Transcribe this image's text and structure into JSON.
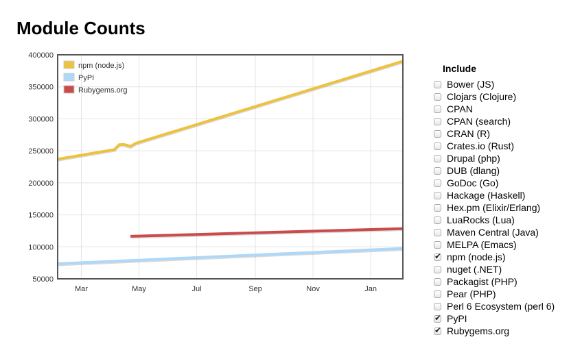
{
  "title": "Module Counts",
  "include": {
    "heading": "Include",
    "options": [
      {
        "label": "Bower (JS)",
        "checked": false
      },
      {
        "label": "Clojars (Clojure)",
        "checked": false
      },
      {
        "label": "CPAN",
        "checked": false
      },
      {
        "label": "CPAN (search)",
        "checked": false
      },
      {
        "label": "CRAN (R)",
        "checked": false
      },
      {
        "label": "Crates.io (Rust)",
        "checked": false
      },
      {
        "label": "Drupal (php)",
        "checked": false
      },
      {
        "label": "DUB (dlang)",
        "checked": false
      },
      {
        "label": "GoDoc (Go)",
        "checked": false
      },
      {
        "label": "Hackage (Haskell)",
        "checked": false
      },
      {
        "label": "Hex.pm (Elixir/Erlang)",
        "checked": false
      },
      {
        "label": "LuaRocks (Lua)",
        "checked": false
      },
      {
        "label": "Maven Central (Java)",
        "checked": false
      },
      {
        "label": "MELPA (Emacs)",
        "checked": false
      },
      {
        "label": "npm (node.js)",
        "checked": true
      },
      {
        "label": "nuget (.NET)",
        "checked": false
      },
      {
        "label": "Packagist (PHP)",
        "checked": false
      },
      {
        "label": "Pear (PHP)",
        "checked": false
      },
      {
        "label": "Perl 6 Ecosystem (perl 6)",
        "checked": false
      },
      {
        "label": "PyPI",
        "checked": true
      },
      {
        "label": "Rubygems.org",
        "checked": true
      }
    ]
  },
  "chart_data": {
    "type": "line",
    "title": "",
    "xlabel": "",
    "ylabel": "",
    "xlim": [
      "2016-02-05",
      "2017-02-04"
    ],
    "ylim": [
      50000,
      400000
    ],
    "yticks": [
      "400000",
      "350000",
      "300000",
      "250000",
      "200000",
      "150000",
      "100000",
      "50000"
    ],
    "xticks": [
      {
        "label": "Mar",
        "date": "2016-03-01"
      },
      {
        "label": "May",
        "date": "2016-05-01"
      },
      {
        "label": "Jul",
        "date": "2016-07-01"
      },
      {
        "label": "Sep",
        "date": "2016-09-01"
      },
      {
        "label": "Nov",
        "date": "2016-11-01"
      },
      {
        "label": "Jan",
        "date": "2017-01-01"
      }
    ],
    "grid": true,
    "legend": "top-left",
    "series": [
      {
        "name": "npm (node.js)",
        "color": "#edc240",
        "points": [
          [
            "2016-02-05",
            237000
          ],
          [
            "2016-04-05",
            252000
          ],
          [
            "2016-04-10",
            259500
          ],
          [
            "2016-04-15",
            260000
          ],
          [
            "2016-04-22",
            257000
          ],
          [
            "2016-04-28",
            262000
          ],
          [
            "2017-02-04",
            390000
          ]
        ]
      },
      {
        "name": "PyPI",
        "color": "#afd8f8",
        "points": [
          [
            "2016-02-05",
            73500
          ],
          [
            "2017-02-04",
            97500
          ]
        ]
      },
      {
        "name": "Rubygems.org",
        "color": "#cb4b4b",
        "points": [
          [
            "2016-04-22",
            116500
          ],
          [
            "2017-02-04",
            128500
          ]
        ]
      }
    ]
  }
}
